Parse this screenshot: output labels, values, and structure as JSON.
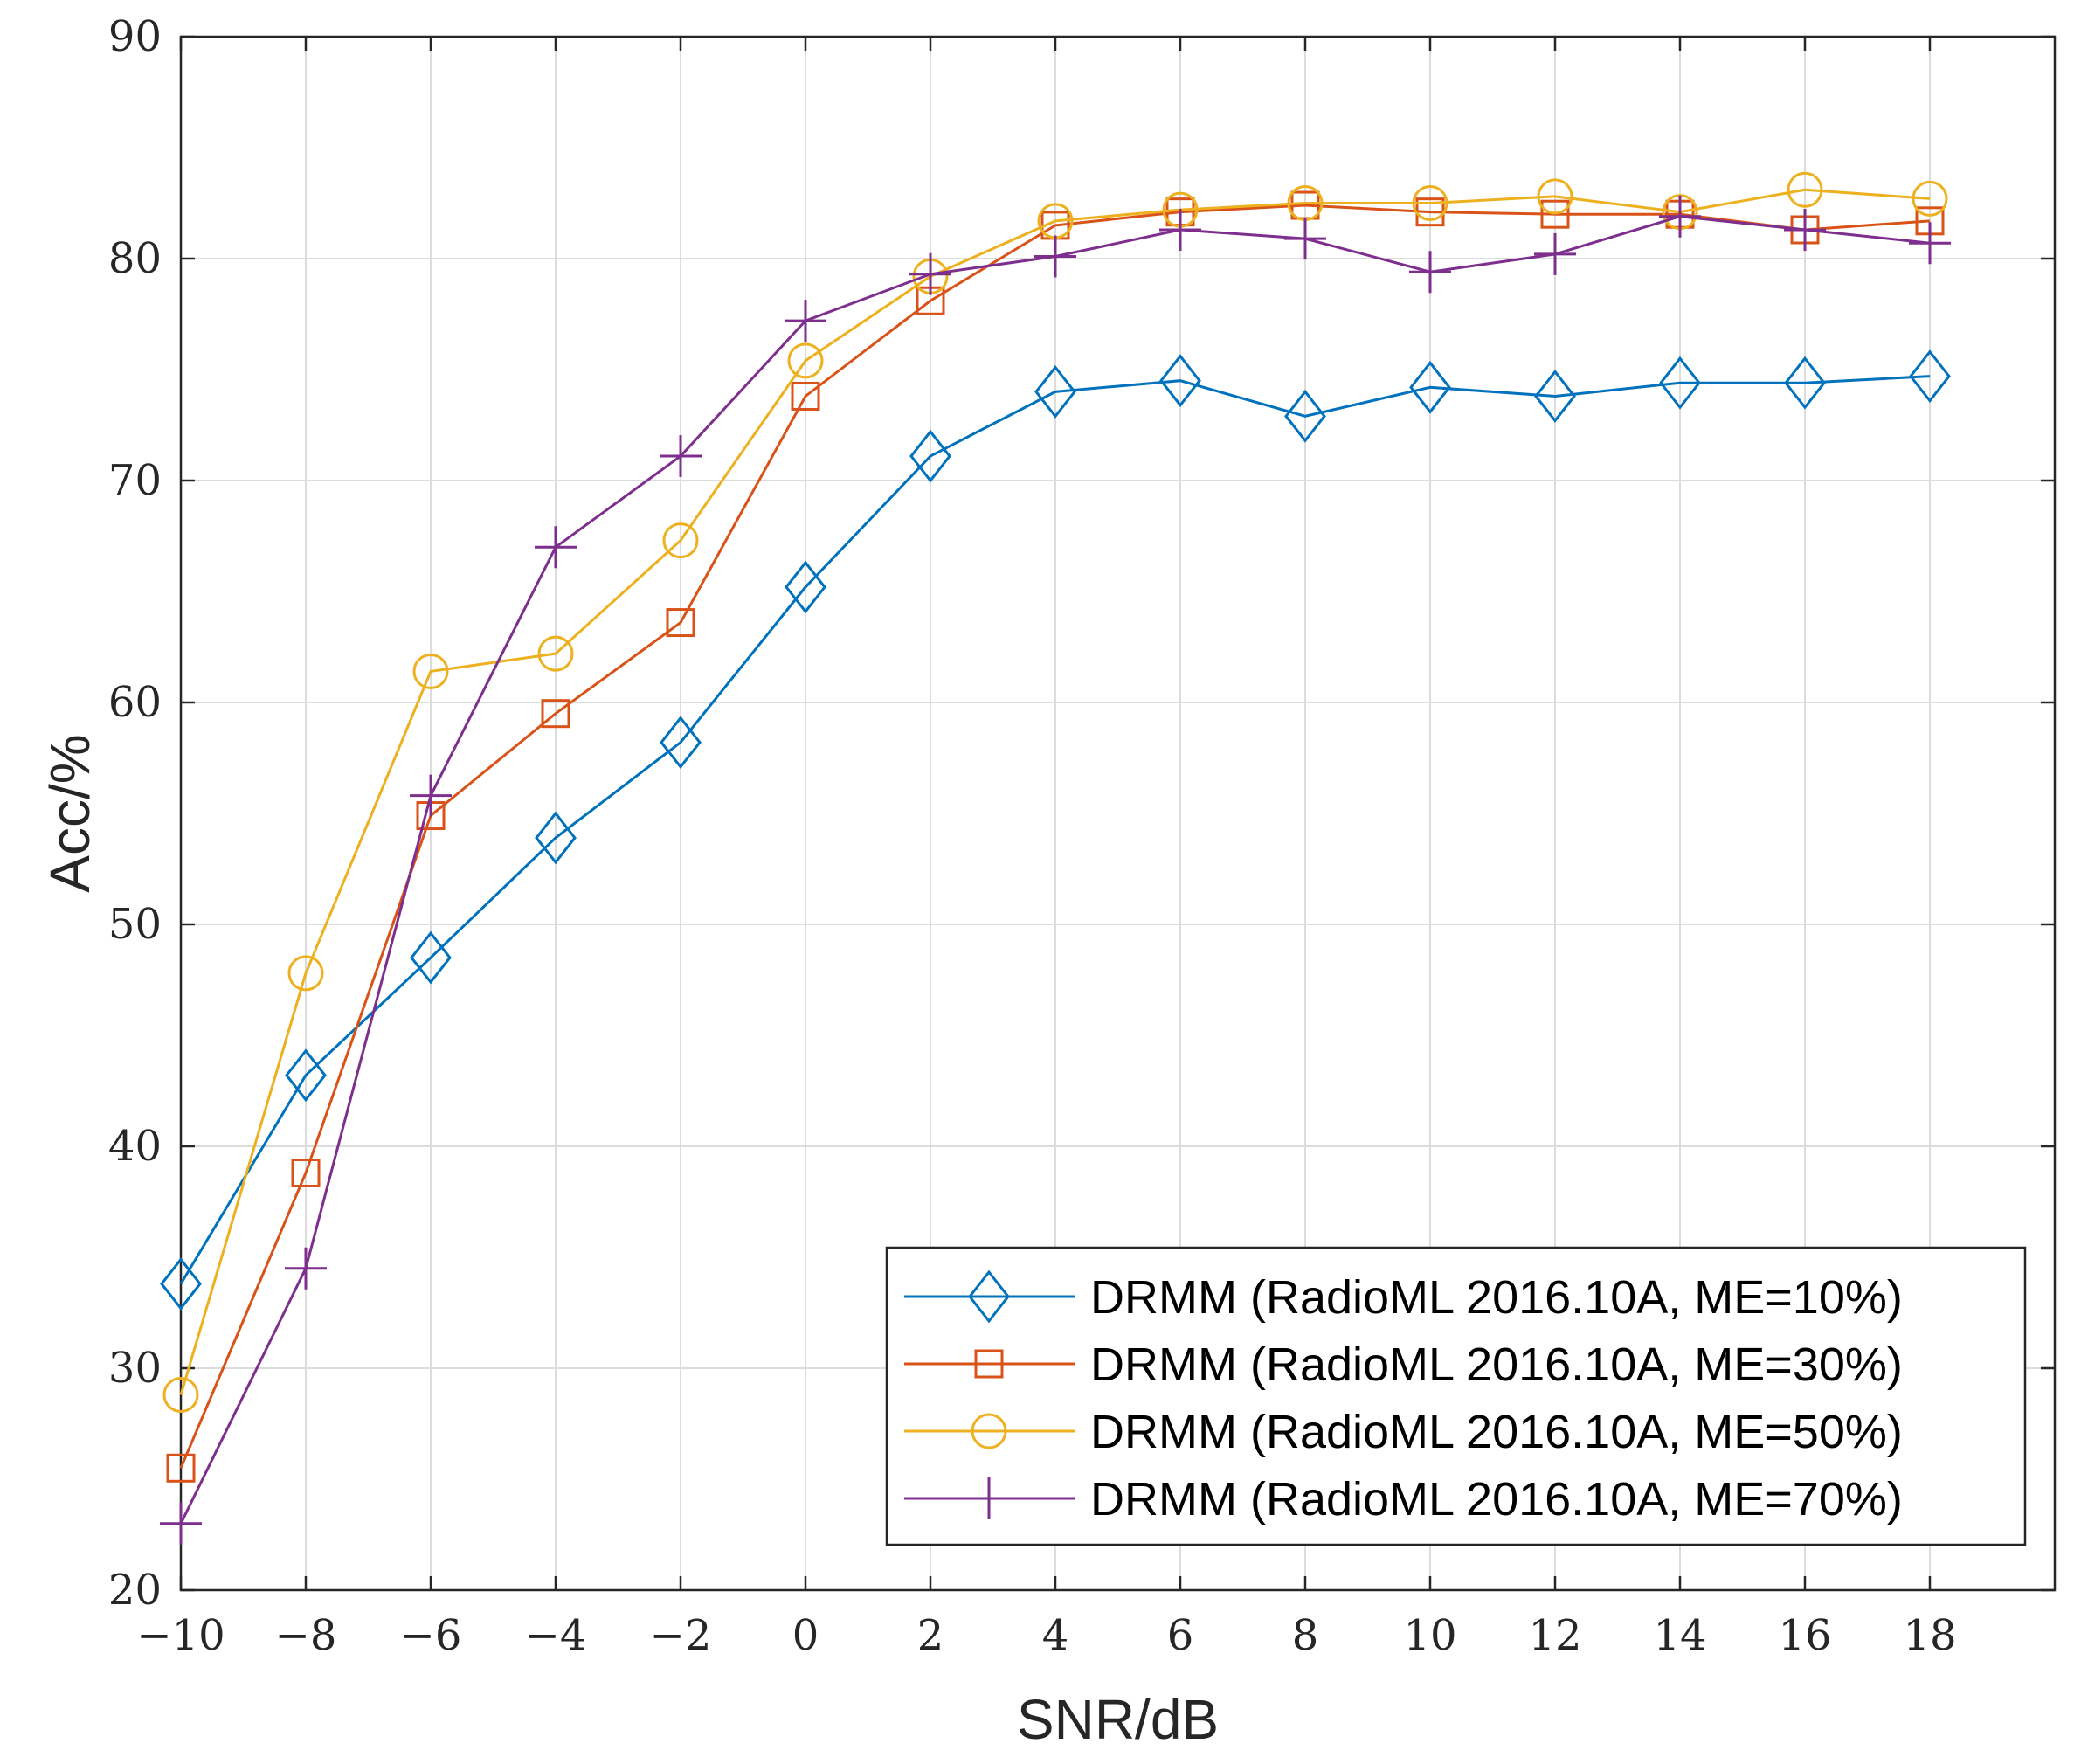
{
  "chart_data": {
    "type": "line",
    "title": "",
    "xlabel": "SNR/dB",
    "ylabel": "Acc/%",
    "xlim": [
      -10,
      20
    ],
    "ylim": [
      20,
      90
    ],
    "xticks": [
      -10,
      -8,
      -6,
      -4,
      -2,
      0,
      2,
      4,
      6,
      8,
      10,
      12,
      14,
      16,
      18
    ],
    "xtick_labels": [
      "−10",
      "−8",
      "−6",
      "−4",
      "−2",
      "0",
      "2",
      "4",
      "6",
      "8",
      "10",
      "12",
      "14",
      "16",
      "18"
    ],
    "yticks": [
      20,
      30,
      40,
      50,
      60,
      70,
      80,
      90
    ],
    "ytick_labels": [
      "20",
      "30",
      "40",
      "50",
      "60",
      "70",
      "80",
      "90"
    ],
    "grid": true,
    "legend_position": "bottom-right",
    "x": [
      -10,
      -8,
      -6,
      -4,
      -2,
      0,
      2,
      4,
      6,
      8,
      10,
      12,
      14,
      16,
      18
    ],
    "series": [
      {
        "name": "DRMM (RadioML 2016.10A, ME=10%)",
        "color": "#0072BD",
        "marker": "diamond",
        "values": [
          33.8,
          43.2,
          48.5,
          53.9,
          58.2,
          65.2,
          71.1,
          74.0,
          74.5,
          72.9,
          74.2,
          73.8,
          74.4,
          74.4,
          74.7
        ]
      },
      {
        "name": "DRMM (RadioML 2016.10A, ME=30%)",
        "color": "#D95319",
        "marker": "square",
        "values": [
          25.5,
          38.8,
          54.9,
          59.5,
          63.6,
          73.8,
          78.1,
          81.5,
          82.1,
          82.4,
          82.1,
          82.0,
          82.0,
          81.3,
          81.7
        ]
      },
      {
        "name": "DRMM (RadioML 2016.10A, ME=50%)",
        "color": "#EDB120",
        "marker": "circle",
        "values": [
          28.8,
          47.8,
          61.4,
          62.2,
          67.3,
          75.4,
          79.2,
          81.7,
          82.2,
          82.5,
          82.5,
          82.8,
          82.1,
          83.1,
          82.7
        ]
      },
      {
        "name": "DRMM (RadioML 2016.10A,  ME=70%)",
        "color": "#7E2F8E",
        "marker": "plus",
        "values": [
          23.0,
          34.5,
          55.8,
          67.0,
          71.1,
          77.2,
          79.3,
          80.1,
          81.3,
          80.9,
          79.4,
          80.2,
          81.9,
          81.3,
          80.7
        ]
      }
    ]
  }
}
